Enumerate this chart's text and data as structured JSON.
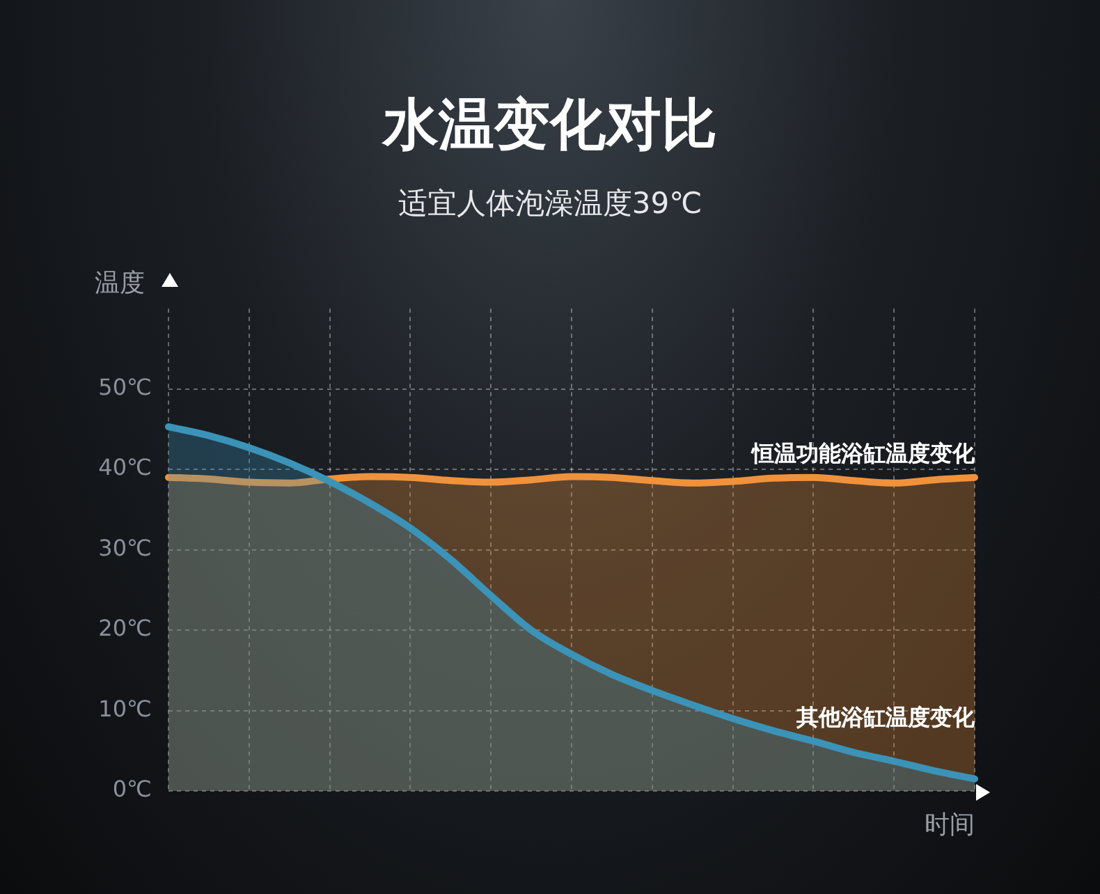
{
  "chart_data": {
    "type": "area",
    "title": "水温变化对比",
    "subtitle": "适宜人体泡澡温度39℃",
    "xlabel": "时间",
    "ylabel": "温度",
    "categories": [
      null,
      null,
      null,
      null,
      null,
      null,
      null,
      null,
      null,
      null,
      null,
      null,
      null,
      null,
      null,
      null,
      null,
      null,
      null,
      null,
      null
    ],
    "series": [
      {
        "name": "恒温功能浴缸温度变化",
        "color": "#f0923c",
        "values": [
          39.0,
          38.8,
          38.4,
          38.3,
          38.8,
          39.1,
          39.0,
          38.6,
          38.4,
          38.7,
          39.1,
          39.0,
          38.6,
          38.3,
          38.5,
          38.9,
          39.0,
          38.6,
          38.3,
          38.7,
          39.0
        ]
      },
      {
        "name": "其他浴缸温度变化",
        "color": "#3b93b8",
        "values": [
          45.3,
          44.2,
          42.7,
          40.8,
          38.5,
          35.8,
          32.7,
          28.8,
          24.3,
          20.0,
          17.0,
          14.5,
          12.5,
          10.7,
          9.0,
          7.5,
          6.2,
          4.8,
          3.7,
          2.5,
          1.5
        ]
      }
    ],
    "ylim": [
      0,
      60
    ],
    "yticks": [
      {
        "value": 0,
        "label": "0℃"
      },
      {
        "value": 10,
        "label": "10℃"
      },
      {
        "value": 20,
        "label": "20℃"
      },
      {
        "value": 30,
        "label": "30℃"
      },
      {
        "value": 40,
        "label": "40℃"
      },
      {
        "value": 50,
        "label": "50℃"
      }
    ],
    "grid": true,
    "tick_labels": "y",
    "line_style": "solid",
    "marker": "none"
  }
}
